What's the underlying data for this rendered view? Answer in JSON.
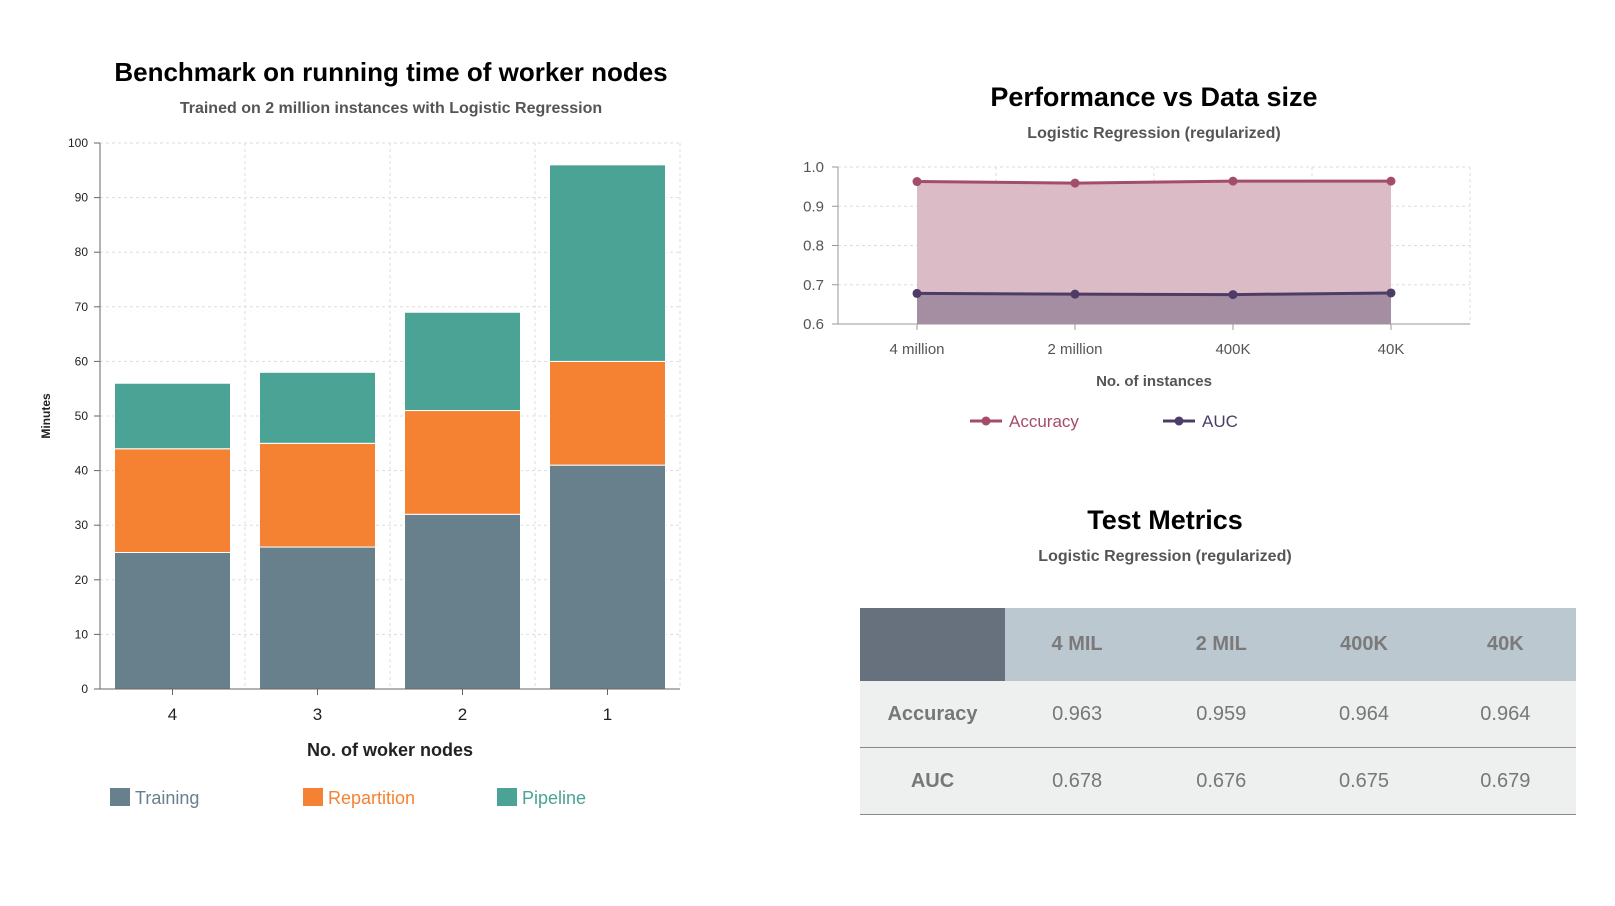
{
  "chart_data": [
    {
      "type": "bar",
      "stacked": true,
      "title": "Benchmark on running time of worker nodes",
      "subtitle": "Trained on 2 million instances with Logistic Regression",
      "xlabel": "No. of woker nodes",
      "ylabel": "Minutes",
      "categories": [
        "4",
        "3",
        "2",
        "1"
      ],
      "ylim": [
        0,
        100
      ],
      "yticks": [
        0,
        10,
        20,
        30,
        40,
        50,
        60,
        70,
        80,
        90,
        100
      ],
      "grid": true,
      "legend_position": "bottom",
      "series": [
        {
          "name": "Training",
          "color": "#68808c",
          "values": [
            25,
            26,
            32,
            41
          ]
        },
        {
          "name": "Repartition",
          "color": "#f58232",
          "values": [
            19,
            19,
            19,
            19
          ]
        },
        {
          "name": "Pipeline",
          "color": "#4aa394",
          "values": [
            12,
            13,
            18,
            36
          ]
        }
      ]
    },
    {
      "type": "area",
      "title": "Performance vs Data size",
      "subtitle": "Logistic Regression (regularized)",
      "xlabel": "No. of instances",
      "ylabel": "",
      "categories": [
        "4 million",
        "2 million",
        "400K",
        "40K"
      ],
      "ylim": [
        0.6,
        1.0
      ],
      "yticks": [
        "0.6",
        "0.7",
        "0.8",
        "0.9",
        "1.0"
      ],
      "grid": true,
      "legend_position": "bottom",
      "series": [
        {
          "name": "Accuracy",
          "color": "#a34d68",
          "fill": "#dbbcc6",
          "values": [
            0.963,
            0.959,
            0.964,
            0.964
          ]
        },
        {
          "name": "AUC",
          "color": "#4d3d66",
          "fill": "#a58ea2",
          "values": [
            0.678,
            0.676,
            0.675,
            0.679
          ]
        }
      ]
    }
  ],
  "table": {
    "title": "Test Metrics",
    "subtitle": "Logistic Regression (regularized)",
    "columns": [
      "4 MIL",
      "2 MIL",
      "400K",
      "40K"
    ],
    "rows": [
      {
        "label": "Accuracy",
        "values": [
          "0.963",
          "0.959",
          "0.964",
          "0.964"
        ]
      },
      {
        "label": "AUC",
        "values": [
          "0.678",
          "0.676",
          "0.675",
          "0.679"
        ]
      }
    ]
  }
}
